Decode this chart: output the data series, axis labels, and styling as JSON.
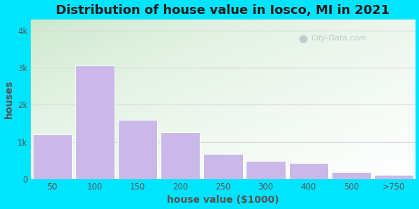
{
  "title": "Distribution of house value in Iosco, MI in 2021",
  "xlabel": "house value ($1000)",
  "ylabel": "houses",
  "bar_labels": [
    "50",
    "100",
    "150",
    "200",
    "250",
    "300",
    "400",
    "500",
    ">750"
  ],
  "bar_values": [
    1200,
    3050,
    1600,
    1250,
    680,
    480,
    440,
    185,
    110
  ],
  "bar_color": "#c9b8e8",
  "bar_edgecolor": "#ffffff",
  "yticks": [
    0,
    1000,
    2000,
    3000,
    4000
  ],
  "ytick_labels": [
    "0",
    "1k",
    "2k",
    "3k",
    "4k"
  ],
  "ylim": [
    0,
    4300
  ],
  "background_outer": "#00e5ff",
  "grid_color": "#d8d8d8",
  "title_fontsize": 13,
  "axis_label_fontsize": 10,
  "tick_fontsize": 8.5,
  "watermark_text": "City-Data.com",
  "title_color": "#1a1a1a",
  "tick_color": "#555555",
  "label_color": "#555555"
}
